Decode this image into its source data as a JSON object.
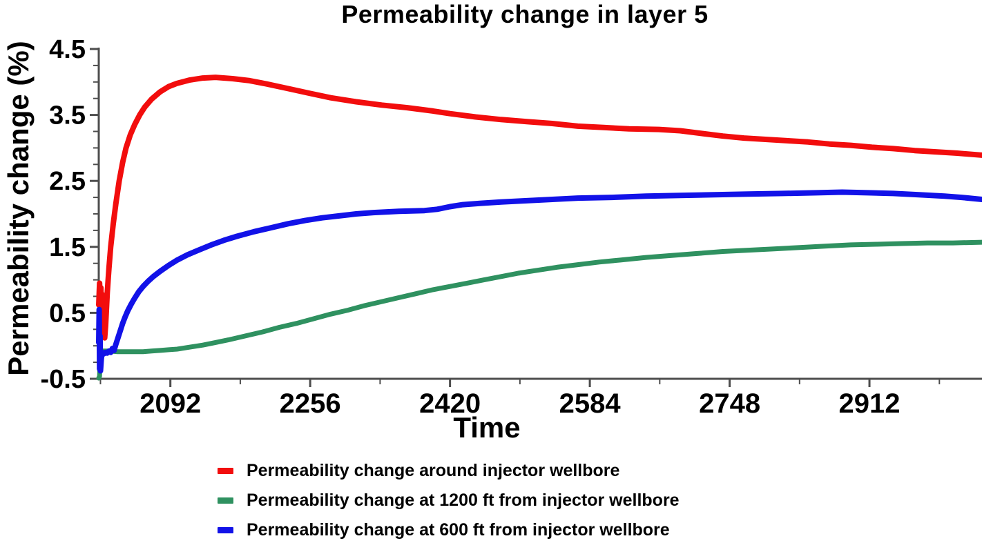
{
  "chart": {
    "title": "Permeability change in layer 5",
    "x_axis_title": "Time",
    "y_axis_title": "Permeability change (%)"
  },
  "colors": {
    "background": "#ffffff",
    "axis": "#4d4d4d",
    "text": "#000000",
    "series_red": "#f20d0d",
    "series_green": "#2f9160",
    "series_blue": "#1212e8"
  },
  "chart_data": {
    "type": "line",
    "title": "Permeability change in layer 5",
    "xlabel": "Time",
    "ylabel": "Permeability change (%)",
    "xlim": [
      2008,
      3044
    ],
    "ylim": [
      -0.5,
      4.5
    ],
    "x_ticks": [
      2092,
      2256,
      2420,
      2584,
      2748,
      2912
    ],
    "x_minor_ticks": [
      2010,
      2174,
      2338,
      2502,
      2666,
      2830,
      2994
    ],
    "y_ticks": [
      -0.5,
      0.5,
      1.5,
      2.5,
      3.5,
      4.5
    ],
    "y_minor_step": 0.25,
    "grid": false,
    "legend_position": "bottom",
    "series": [
      {
        "name": "Permeability change around injector wellbore",
        "color": "#f20d0d",
        "width": 8,
        "points": [
          [
            2008,
            0.62
          ],
          [
            2009,
            0.95
          ],
          [
            2010,
            0.52
          ],
          [
            2010.5,
            0.88
          ],
          [
            2011,
            0.45
          ],
          [
            2012,
            0.78
          ],
          [
            2013,
            0.38
          ],
          [
            2014,
            0.22
          ],
          [
            2015,
            0.12
          ],
          [
            2016,
            0.3
          ],
          [
            2017,
            0.55
          ],
          [
            2018,
            0.8
          ],
          [
            2019,
            1.0
          ],
          [
            2020,
            1.18
          ],
          [
            2022,
            1.5
          ],
          [
            2025,
            1.85
          ],
          [
            2028,
            2.15
          ],
          [
            2032,
            2.5
          ],
          [
            2036,
            2.78
          ],
          [
            2040,
            3.0
          ],
          [
            2045,
            3.2
          ],
          [
            2050,
            3.35
          ],
          [
            2056,
            3.5
          ],
          [
            2062,
            3.62
          ],
          [
            2070,
            3.74
          ],
          [
            2080,
            3.85
          ],
          [
            2090,
            3.93
          ],
          [
            2100,
            3.98
          ],
          [
            2115,
            4.03
          ],
          [
            2130,
            4.06
          ],
          [
            2145,
            4.07
          ],
          [
            2165,
            4.05
          ],
          [
            2185,
            4.02
          ],
          [
            2205,
            3.97
          ],
          [
            2230,
            3.9
          ],
          [
            2255,
            3.83
          ],
          [
            2280,
            3.76
          ],
          [
            2310,
            3.7
          ],
          [
            2340,
            3.65
          ],
          [
            2370,
            3.61
          ],
          [
            2400,
            3.56
          ],
          [
            2420,
            3.52
          ],
          [
            2450,
            3.47
          ],
          [
            2480,
            3.43
          ],
          [
            2510,
            3.4
          ],
          [
            2540,
            3.37
          ],
          [
            2570,
            3.33
          ],
          [
            2600,
            3.31
          ],
          [
            2630,
            3.29
          ],
          [
            2665,
            3.28
          ],
          [
            2690,
            3.26
          ],
          [
            2715,
            3.22
          ],
          [
            2740,
            3.18
          ],
          [
            2765,
            3.15
          ],
          [
            2790,
            3.13
          ],
          [
            2815,
            3.11
          ],
          [
            2840,
            3.09
          ],
          [
            2865,
            3.06
          ],
          [
            2890,
            3.04
          ],
          [
            2915,
            3.01
          ],
          [
            2940,
            2.99
          ],
          [
            2965,
            2.96
          ],
          [
            2990,
            2.94
          ],
          [
            3015,
            2.92
          ],
          [
            3044,
            2.89
          ]
        ]
      },
      {
        "name": "Permeability change at 1200 ft from injector wellbore",
        "color": "#2f9160",
        "width": 7,
        "points": [
          [
            2008,
            -0.49
          ],
          [
            2009,
            -0.46
          ],
          [
            2009.5,
            -0.2
          ],
          [
            2010,
            -0.08
          ],
          [
            2015,
            -0.08
          ],
          [
            2020,
            -0.08
          ],
          [
            2030,
            -0.09
          ],
          [
            2040,
            -0.09
          ],
          [
            2050,
            -0.09
          ],
          [
            2060,
            -0.09
          ],
          [
            2070,
            -0.08
          ],
          [
            2080,
            -0.07
          ],
          [
            2090,
            -0.06
          ],
          [
            2100,
            -0.05
          ],
          [
            2115,
            -0.02
          ],
          [
            2130,
            0.01
          ],
          [
            2145,
            0.05
          ],
          [
            2160,
            0.09
          ],
          [
            2180,
            0.15
          ],
          [
            2200,
            0.21
          ],
          [
            2220,
            0.28
          ],
          [
            2240,
            0.34
          ],
          [
            2260,
            0.41
          ],
          [
            2280,
            0.48
          ],
          [
            2300,
            0.54
          ],
          [
            2320,
            0.61
          ],
          [
            2340,
            0.67
          ],
          [
            2360,
            0.73
          ],
          [
            2380,
            0.79
          ],
          [
            2400,
            0.85
          ],
          [
            2420,
            0.9
          ],
          [
            2440,
            0.95
          ],
          [
            2460,
            1.0
          ],
          [
            2480,
            1.05
          ],
          [
            2500,
            1.1
          ],
          [
            2520,
            1.14
          ],
          [
            2545,
            1.19
          ],
          [
            2570,
            1.23
          ],
          [
            2595,
            1.27
          ],
          [
            2620,
            1.3
          ],
          [
            2650,
            1.34
          ],
          [
            2680,
            1.37
          ],
          [
            2710,
            1.4
          ],
          [
            2740,
            1.43
          ],
          [
            2770,
            1.45
          ],
          [
            2800,
            1.47
          ],
          [
            2830,
            1.49
          ],
          [
            2860,
            1.51
          ],
          [
            2890,
            1.53
          ],
          [
            2920,
            1.54
          ],
          [
            2950,
            1.55
          ],
          [
            2980,
            1.56
          ],
          [
            3010,
            1.56
          ],
          [
            3044,
            1.57
          ]
        ]
      },
      {
        "name": "Permeability change at 600 ft from injector wellbore",
        "color": "#1212e8",
        "width": 8,
        "points": [
          [
            2008,
            0.05
          ],
          [
            2008.5,
            0.55
          ],
          [
            2009,
            -0.35
          ],
          [
            2009.5,
            0.15
          ],
          [
            2010,
            -0.38
          ],
          [
            2011,
            -0.2
          ],
          [
            2012,
            -0.1
          ],
          [
            2014,
            -0.12
          ],
          [
            2016,
            -0.1
          ],
          [
            2018,
            -0.11
          ],
          [
            2020,
            -0.08
          ],
          [
            2022,
            -0.1
          ],
          [
            2024,
            -0.04
          ],
          [
            2026,
            -0.07
          ],
          [
            2028,
            0.02
          ],
          [
            2030,
            0.1
          ],
          [
            2033,
            0.22
          ],
          [
            2036,
            0.34
          ],
          [
            2039,
            0.44
          ],
          [
            2042,
            0.53
          ],
          [
            2046,
            0.63
          ],
          [
            2050,
            0.72
          ],
          [
            2055,
            0.82
          ],
          [
            2060,
            0.9
          ],
          [
            2066,
            0.98
          ],
          [
            2072,
            1.05
          ],
          [
            2080,
            1.13
          ],
          [
            2090,
            1.22
          ],
          [
            2100,
            1.3
          ],
          [
            2112,
            1.38
          ],
          [
            2125,
            1.45
          ],
          [
            2140,
            1.53
          ],
          [
            2155,
            1.6
          ],
          [
            2170,
            1.66
          ],
          [
            2190,
            1.73
          ],
          [
            2210,
            1.79
          ],
          [
            2230,
            1.85
          ],
          [
            2250,
            1.9
          ],
          [
            2270,
            1.94
          ],
          [
            2290,
            1.97
          ],
          [
            2310,
            2.0
          ],
          [
            2330,
            2.02
          ],
          [
            2360,
            2.04
          ],
          [
            2390,
            2.05
          ],
          [
            2405,
            2.07
          ],
          [
            2420,
            2.11
          ],
          [
            2435,
            2.14
          ],
          [
            2455,
            2.16
          ],
          [
            2480,
            2.18
          ],
          [
            2510,
            2.2
          ],
          [
            2540,
            2.22
          ],
          [
            2570,
            2.24
          ],
          [
            2610,
            2.25
          ],
          [
            2650,
            2.27
          ],
          [
            2690,
            2.28
          ],
          [
            2730,
            2.29
          ],
          [
            2770,
            2.3
          ],
          [
            2810,
            2.31
          ],
          [
            2850,
            2.32
          ],
          [
            2880,
            2.33
          ],
          [
            2910,
            2.32
          ],
          [
            2940,
            2.31
          ],
          [
            2970,
            2.29
          ],
          [
            3000,
            2.27
          ],
          [
            3020,
            2.25
          ],
          [
            3044,
            2.22
          ]
        ]
      }
    ]
  }
}
